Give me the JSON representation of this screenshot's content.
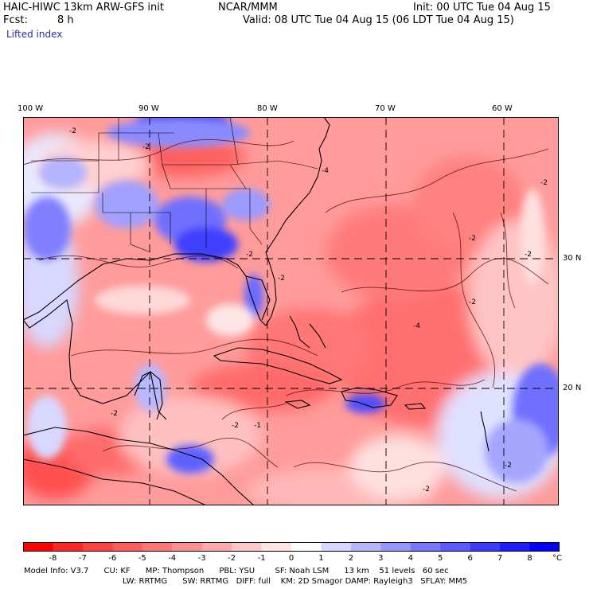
{
  "header": {
    "title": "HAIC-HIWC 13km ARW-GFS init",
    "org": "NCAR/MMM",
    "init": "Init: 00 UTC Tue 04 Aug 15",
    "fcst_label": "Fcst:",
    "fcst_value": "8 h",
    "valid": "Valid: 08 UTC Tue 04 Aug 15 (06 LDT Tue 04 Aug 15)",
    "field": "Lifted index"
  },
  "axes": {
    "lon_labels": [
      "100 W",
      "90 W",
      "80 W",
      "70 W",
      "60 W"
    ],
    "lat_labels": [
      "30 N",
      "20 N"
    ]
  },
  "contour_labels": [
    "-2",
    "-2",
    "-4",
    "-2",
    "-2",
    "-2",
    "-2",
    "-2",
    "-2",
    "-4",
    "-2",
    "-1",
    "-2",
    "-2",
    "-2"
  ],
  "colorbar": {
    "labels": [
      "-8",
      "-7",
      "-6",
      "-5",
      "-4",
      "-3",
      "-2",
      "-1",
      "0",
      "1",
      "2",
      "3",
      "4",
      "5",
      "6",
      "7",
      "8"
    ],
    "unit": "°C",
    "colors": [
      "#ff0000",
      "#ff2626",
      "#ff4242",
      "#ff5c5c",
      "#ff7676",
      "#ff9090",
      "#ffaaaa",
      "#ffc8c8",
      "#ffe4e4",
      "#ffffff",
      "#d6d6ff",
      "#b4b4ff",
      "#9696ff",
      "#7878ff",
      "#5a5aff",
      "#3c3cff",
      "#1e1eff",
      "#0000ff"
    ]
  },
  "model_info": {
    "line1": "Model Info: V3.7      CU: KF      MP: Thompson      PBL: YSU        SF: Noah LSM      13 km    51 levels   60 sec",
    "line2": "LW: RRTMG      SW: RRTMG   DIFF: full    KM: 2D Smagor DAMP: Rayleigh3   SFLAY: MM5"
  }
}
